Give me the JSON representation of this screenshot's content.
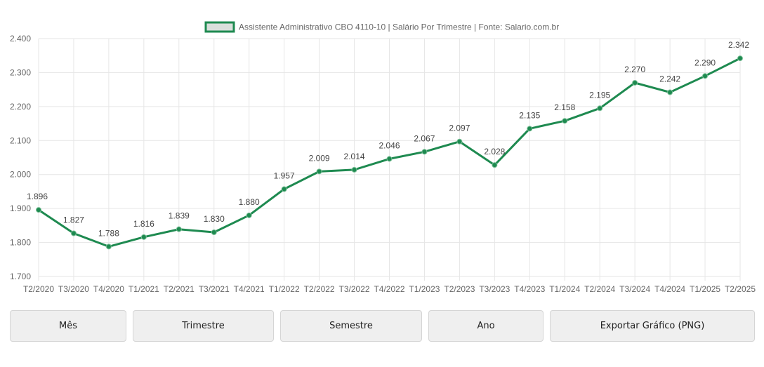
{
  "chart_data": {
    "type": "line",
    "legend_label": "Assistente Administrativo CBO 4110-10 | Salário Por Trimestre | Fonte: Salario.com.br",
    "legend_position": "top-center",
    "categories": [
      "T2/2020",
      "T3/2020",
      "T4/2020",
      "T1/2021",
      "T2/2021",
      "T3/2021",
      "T4/2021",
      "T1/2022",
      "T2/2022",
      "T3/2022",
      "T4/2022",
      "T1/2023",
      "T2/2023",
      "T3/2023",
      "T4/2023",
      "T1/2024",
      "T2/2024",
      "T3/2024",
      "T4/2024",
      "T1/2025",
      "T2/2025"
    ],
    "values": [
      1896,
      1827,
      1788,
      1816,
      1839,
      1830,
      1880,
      1957,
      2009,
      2014,
      2046,
      2067,
      2097,
      2028,
      2135,
      2158,
      2195,
      2270,
      2242,
      2290,
      2342
    ],
    "value_labels": [
      "1.896",
      "1.827",
      "1.788",
      "1.816",
      "1.839",
      "1.830",
      "1.880",
      "1.957",
      "2.009",
      "2.014",
      "2.046",
      "2.067",
      "2.097",
      "2.028",
      "2.135",
      "2.158",
      "2.195",
      "2.270",
      "2.242",
      "2.290",
      "2.342"
    ],
    "y_ticks": [
      1700,
      1800,
      1900,
      2000,
      2100,
      2200,
      2300,
      2400
    ],
    "y_tick_labels": [
      "1.700",
      "1.800",
      "1.900",
      "2.000",
      "2.100",
      "2.200",
      "2.300",
      "2.400"
    ],
    "ylim": [
      1700,
      2400
    ],
    "grid": true,
    "line_color": "#1e8a50",
    "legend_fill": "#d9dfdb",
    "title": "",
    "xlabel": "",
    "ylabel": ""
  },
  "buttons": {
    "month": "Mês",
    "quarter": "Trimestre",
    "semester": "Semestre",
    "year": "Ano",
    "export": "Exportar Gráfico (PNG)"
  }
}
